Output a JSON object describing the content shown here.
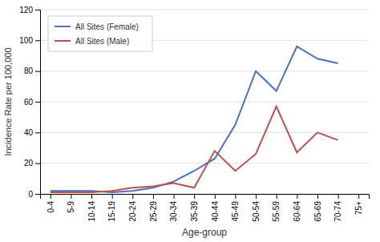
{
  "chart_data": {
    "type": "line",
    "xlabel": "Age-group",
    "ylabel": "Incidence Rate per 100,000",
    "categories": [
      "0-4",
      "5-9",
      "10-14",
      "15-19",
      "20-24",
      "25-29",
      "30-34",
      "35-39",
      "40-44",
      "45-49",
      "50-54",
      "55-59",
      "60-64",
      "65-69",
      "70-74",
      "75+"
    ],
    "series": [
      {
        "name": "All Sites (Female)",
        "color": "#4472C4",
        "values": [
          2,
          2,
          2,
          1,
          2,
          4,
          8,
          15,
          23,
          45,
          80,
          67,
          96,
          88,
          85,
          null
        ]
      },
      {
        "name": "All Sites (Male)",
        "color": "#C0504D",
        "values": [
          1,
          1,
          1,
          2,
          4,
          5,
          7,
          4,
          28,
          15,
          26,
          57,
          27,
          40,
          35,
          null
        ]
      }
    ],
    "ylim": [
      0,
      120
    ],
    "yticks": [
      0,
      20,
      40,
      60,
      80,
      100,
      120
    ],
    "grid": true,
    "legend": "upper left"
  }
}
